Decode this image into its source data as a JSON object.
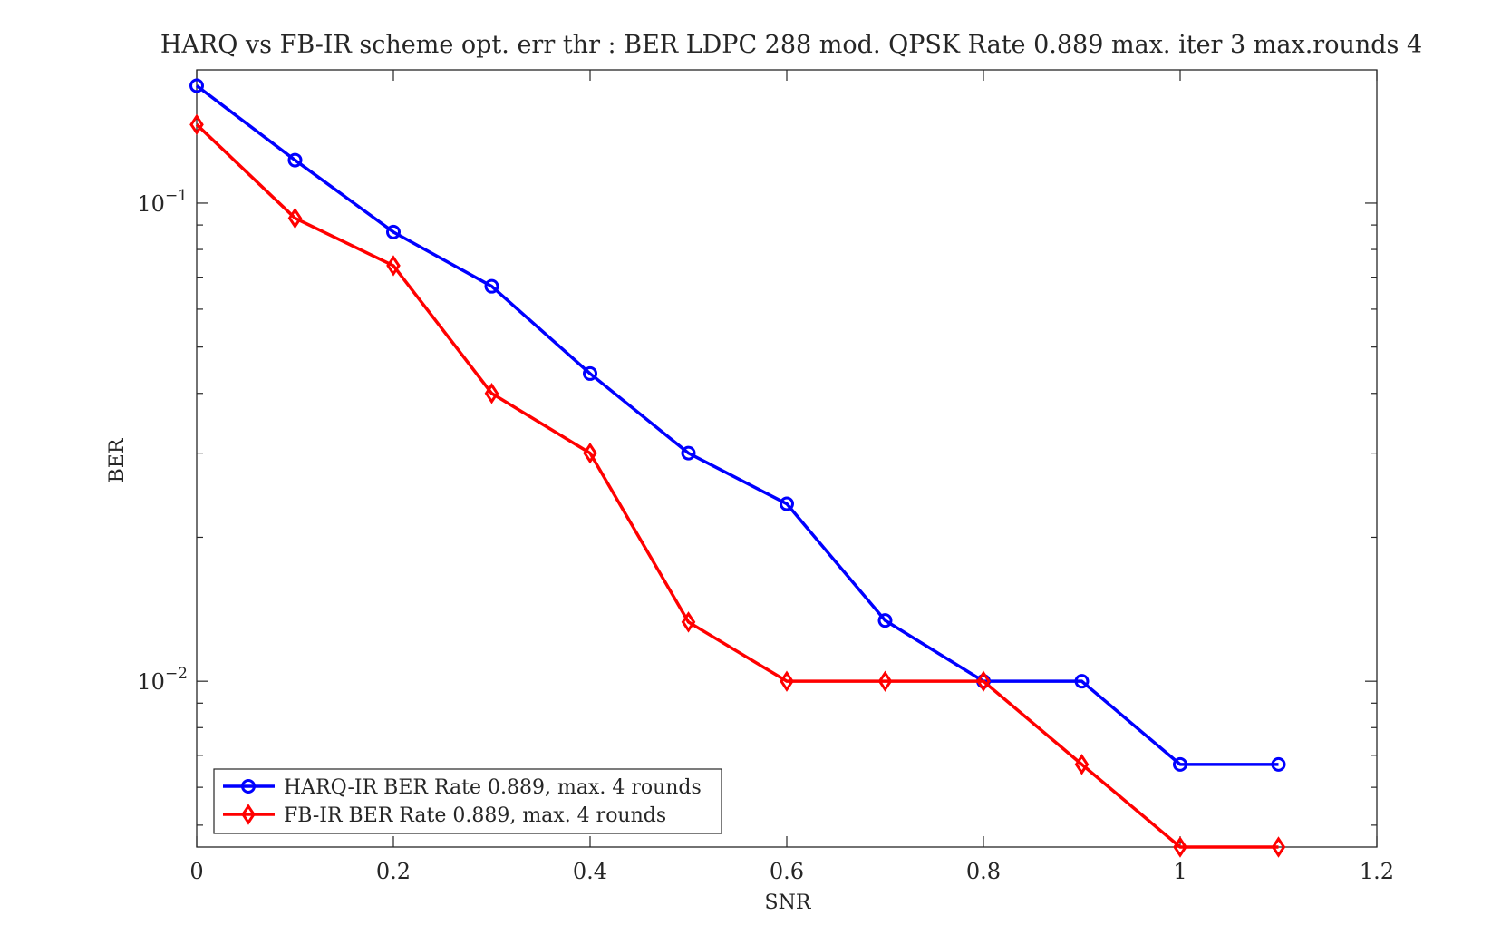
{
  "chart_data": {
    "type": "line",
    "title": "HARQ vs FB-IR scheme opt. err thr : BER LDPC 288 mod. QPSK Rate 0.889 max. iter 3 max.rounds 4",
    "xlabel": "SNR",
    "ylabel": "BER",
    "xlim": [
      0,
      1.2
    ],
    "ylim": [
      0.0045,
      0.19
    ],
    "yscale": "log",
    "grid": false,
    "legend_position": "bottom-left",
    "x_ticks": [
      0,
      0.2,
      0.4,
      0.6,
      0.8,
      1,
      1.2
    ],
    "x_tick_labels": [
      "0",
      "0.2",
      "0.4",
      "0.6",
      "0.8",
      "1",
      "1.2"
    ],
    "y_major_ticks": [
      {
        "value": 0.1,
        "base": "10",
        "exp": "−1"
      },
      {
        "value": 0.01,
        "base": "10",
        "exp": "−2"
      }
    ],
    "x": [
      0,
      0.1,
      0.2,
      0.3,
      0.4,
      0.5,
      0.6,
      0.7,
      0.8,
      0.9,
      1.0,
      1.1
    ],
    "series": [
      {
        "name": "HARQ-IR BER Rate 0.889, max. 4 rounds",
        "color": "#0000ff",
        "marker": "circle",
        "values": [
          0.176,
          0.123,
          0.087,
          0.067,
          0.044,
          0.03,
          0.0235,
          0.0134,
          0.01,
          0.01,
          0.0067,
          0.0067
        ]
      },
      {
        "name": "FB-IR BER Rate 0.889, max. 4 rounds",
        "color": "#ff0000",
        "marker": "diamond",
        "values": [
          0.146,
          0.093,
          0.074,
          0.04,
          0.03,
          0.0133,
          0.01,
          0.01,
          0.01,
          0.0067,
          0.0045,
          0.0045
        ]
      }
    ]
  }
}
